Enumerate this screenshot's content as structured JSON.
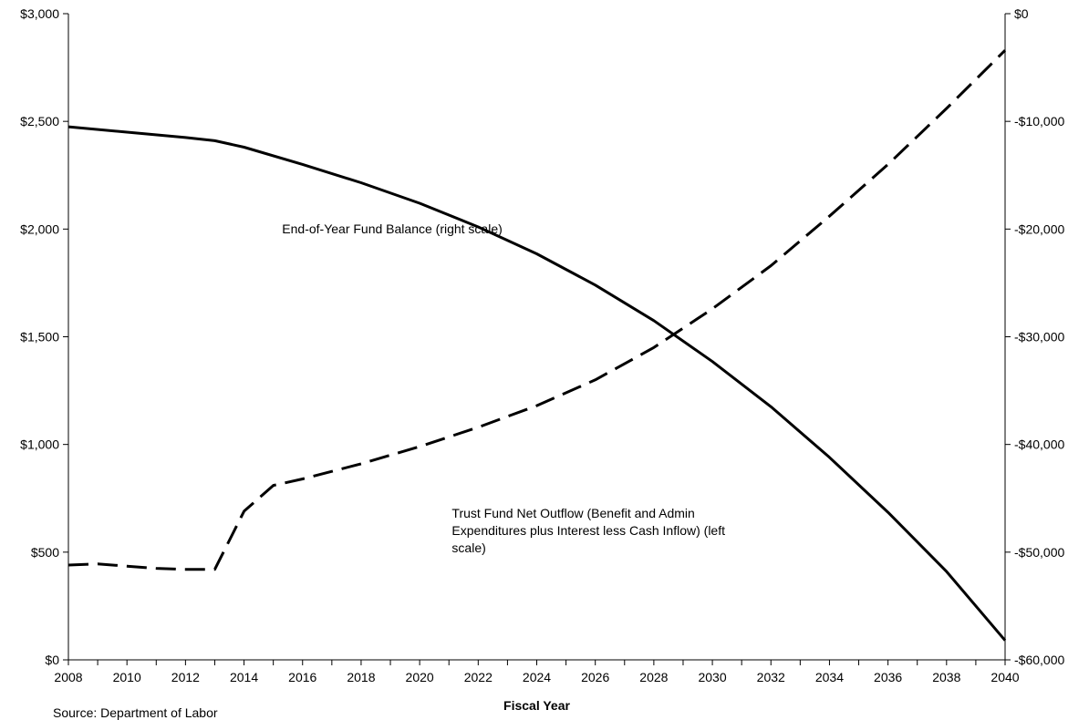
{
  "chart_data": {
    "type": "line",
    "x_label": "Fiscal Year",
    "x_ticks": [
      "2008",
      "2010",
      "2012",
      "2014",
      "2016",
      "2018",
      "2020",
      "2022",
      "2024",
      "2026",
      "2028",
      "2030",
      "2032",
      "2034",
      "2036",
      "2038",
      "2040"
    ],
    "xlim": [
      2008,
      2040
    ],
    "y_left": {
      "ylim": [
        0,
        3000
      ],
      "ticks": [
        0,
        500,
        1000,
        1500,
        2000,
        2500,
        3000
      ],
      "tick_labels": [
        "$0",
        "$500",
        "$1,000",
        "$1,500",
        "$2,000",
        "$2,500",
        "$3,000"
      ]
    },
    "y_right": {
      "ylim": [
        -60000,
        0
      ],
      "ticks": [
        -60000,
        -50000,
        -40000,
        -30000,
        -20000,
        -10000,
        0
      ],
      "tick_labels": [
        "-$60,000",
        "-$50,000",
        "-$40,000",
        "-$30,000",
        "-$20,000",
        "-$10,000",
        "$0"
      ]
    },
    "grid": false,
    "legend": "none",
    "series": [
      {
        "name": "End-of-Year Fund Balance (right scale)",
        "axis": "right",
        "style": "solid",
        "color": "#000000",
        "x": [
          2008,
          2010,
          2012,
          2013,
          2014,
          2016,
          2018,
          2020,
          2022,
          2024,
          2026,
          2028,
          2030,
          2032,
          2034,
          2036,
          2038,
          2040
        ],
        "y": [
          -10500,
          -11000,
          -11500,
          -11800,
          -12400,
          -14000,
          -15700,
          -17600,
          -19800,
          -22300,
          -25200,
          -28500,
          -32300,
          -36500,
          -41200,
          -46300,
          -51800,
          -58200
        ]
      },
      {
        "name": "Trust Fund Net Outflow (Benefit and Admin Expenditures plus Interest less Cash Inflow) (left scale)",
        "axis": "left",
        "style": "dashed",
        "color": "#000000",
        "x": [
          2008,
          2009,
          2010,
          2011,
          2012,
          2013,
          2014,
          2015,
          2016,
          2018,
          2020,
          2022,
          2024,
          2026,
          2028,
          2030,
          2032,
          2034,
          2036,
          2038,
          2040
        ],
        "y": [
          440,
          445,
          435,
          425,
          420,
          420,
          690,
          810,
          840,
          910,
          990,
          1080,
          1180,
          1300,
          1450,
          1630,
          1830,
          2060,
          2300,
          2560,
          2830
        ]
      }
    ],
    "annotations": [
      {
        "lines": [
          "End-of-Year Fund Balance (right scale)"
        ],
        "x": 2015.3,
        "y": 1980
      },
      {
        "lines": [
          "Trust Fund Net Outflow (Benefit and Admin",
          "Expenditures plus Interest less Cash Inflow) (left",
          "scale)"
        ],
        "x": 2021.1,
        "y": 660
      }
    ]
  },
  "source_text": "Source: Department of Labor"
}
